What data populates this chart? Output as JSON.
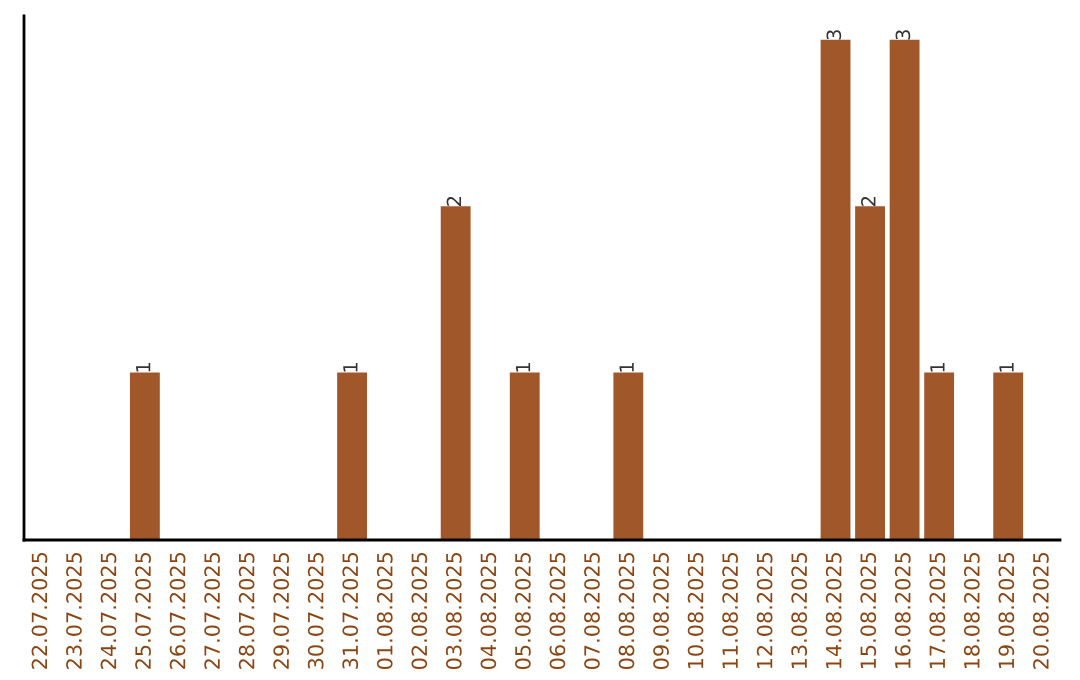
{
  "chart_data": {
    "type": "bar",
    "categories": [
      "22.07.2025",
      "23.07.2025",
      "24.07.2025",
      "25.07.2025",
      "26.07.2025",
      "27.07.2025",
      "28.07.2025",
      "29.07.2025",
      "30.07.2025",
      "31.07.2025",
      "01.08.2025",
      "02.08.2025",
      "03.08.2025",
      "04.08.2025",
      "05.08.2025",
      "06.08.2025",
      "07.08.2025",
      "08.08.2025",
      "09.08.2025",
      "10.08.2025",
      "11.08.2025",
      "12.08.2025",
      "13.08.2025",
      "14.08.2025",
      "15.08.2025",
      "16.08.2025",
      "17.08.2025",
      "18.08.2025",
      "19.08.2025",
      "20.08.2025"
    ],
    "values": [
      0,
      0,
      0,
      1,
      0,
      0,
      0,
      0,
      0,
      1,
      0,
      0,
      2,
      0,
      1,
      0,
      0,
      1,
      0,
      0,
      0,
      0,
      0,
      3,
      2,
      3,
      1,
      0,
      1,
      0
    ],
    "value_labels": [
      null,
      null,
      null,
      "1",
      null,
      null,
      null,
      null,
      null,
      "1",
      null,
      null,
      "2",
      null,
      "1",
      null,
      null,
      "1",
      null,
      null,
      null,
      null,
      null,
      "3",
      "2",
      "3",
      "1",
      null,
      "1",
      null
    ],
    "color": "#a0572a",
    "tick_labels": "x",
    "grid": false,
    "legend": false
  }
}
